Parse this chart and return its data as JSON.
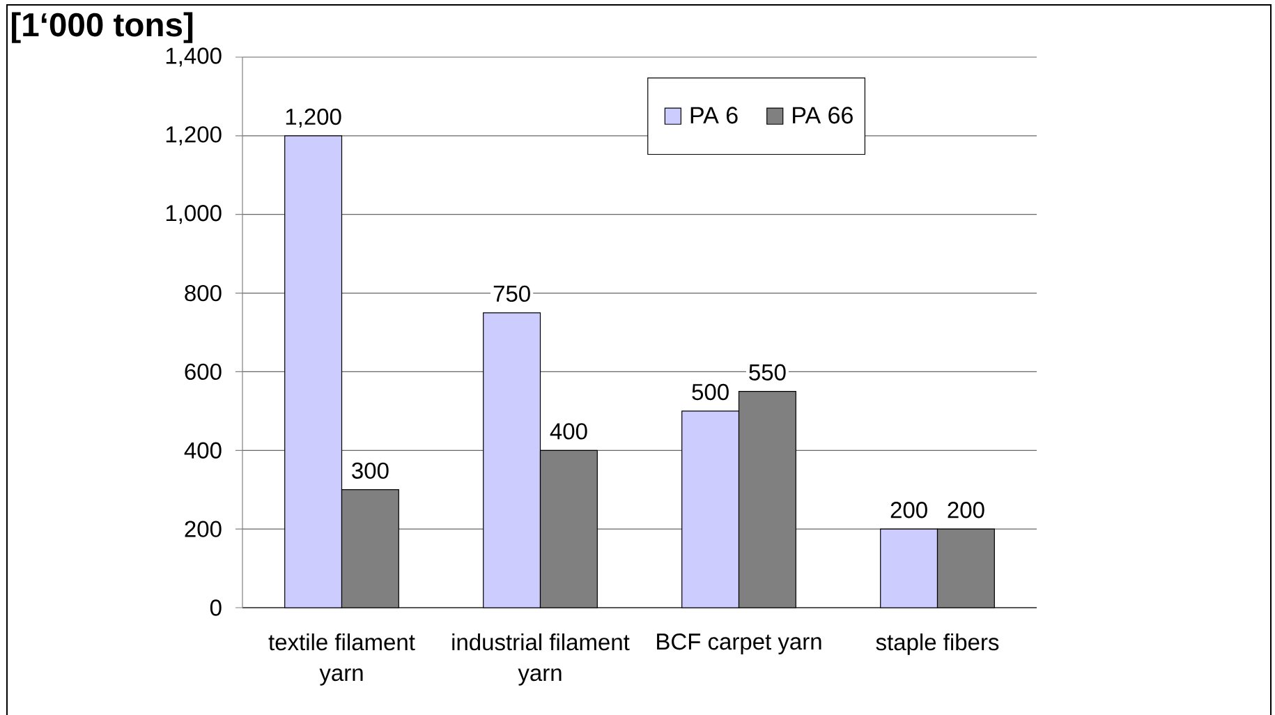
{
  "chart_data": {
    "type": "bar",
    "ylabel": "[1‘000 tons]",
    "categories": [
      "textile filament yarn",
      "industrial filament yarn",
      "BCF carpet yarn",
      "staple fibers"
    ],
    "series": [
      {
        "name": "PA 6",
        "color": "#ccccff",
        "values": [
          1200,
          750,
          500,
          200
        ],
        "value_labels": [
          "1,200",
          "750",
          "500",
          "200"
        ]
      },
      {
        "name": "PA 66",
        "color": "#808080",
        "values": [
          300,
          400,
          550,
          200
        ],
        "value_labels": [
          "300",
          "400",
          "550",
          "200"
        ]
      }
    ],
    "ylim": [
      0,
      1400
    ],
    "yticks": [
      0,
      200,
      400,
      600,
      800,
      {
        "value": 1000,
        "label": "1,000"
      },
      {
        "value": 1200,
        "label": "1,200"
      },
      {
        "value": 1400,
        "label": "1,400"
      }
    ],
    "grid": "y",
    "legend": "top"
  }
}
